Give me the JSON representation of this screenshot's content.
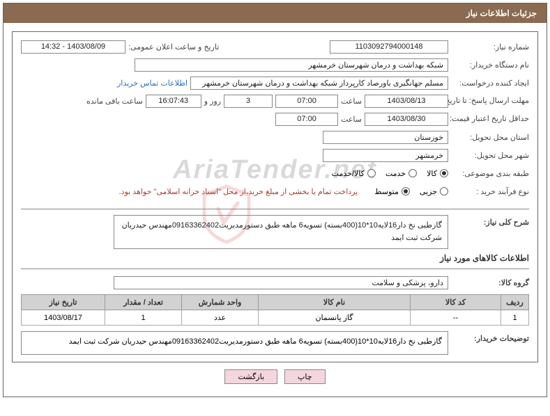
{
  "header": {
    "title": "جزئیات اطلاعات نیاز"
  },
  "watermark": "AriaTender.net",
  "fields": {
    "need_number_label": "شماره نیاز:",
    "need_number": "1103092794000148",
    "announce_datetime_label": "تاریخ و ساعت اعلان عمومی:",
    "announce_datetime": "1403/08/09 - 14:32",
    "buyer_org_label": "نام دستگاه خریدار:",
    "buyer_org": "شبکه بهداشت و درمان شهرستان خرمشهر",
    "requester_label": "ایجاد کننده درخواست:",
    "requester": "مسلم جهانگیری باورصاد کارپرداز شبکه بهداشت و درمان شهرستان خرمشهر",
    "contact_link": "اطلاعات تماس خریدار",
    "deadline_reply_label": "مهلت ارسال پاسخ: تا تاریخ:",
    "deadline_reply_date": "1403/08/13",
    "time_label": "ساعت",
    "deadline_reply_time": "07:00",
    "days_remaining": "3",
    "days_and_label": "روز و",
    "countdown": "16:07:43",
    "remaining_label": "ساعت باقی مانده",
    "price_validity_label": "حداقل تاریخ اعتبار قیمت: تا تاریخ:",
    "price_validity_date": "1403/08/30",
    "price_validity_time": "07:00",
    "delivery_province_label": "استان محل تحویل:",
    "delivery_province": "خوزستان",
    "delivery_city_label": "شهر محل تحویل:",
    "delivery_city": "خرمشهر",
    "category_label": "طبقه بندی موضوعی:",
    "category_options": [
      {
        "label": "کالا",
        "checked": true
      },
      {
        "label": "خدمت",
        "checked": false
      },
      {
        "label": "کالا/خدمت",
        "checked": false
      }
    ],
    "purchase_process_label": "نوع فرآیند خرید :",
    "purchase_options": [
      {
        "label": "جزیی",
        "checked": false
      },
      {
        "label": "متوسط",
        "checked": true
      }
    ],
    "payment_note": "پرداخت تمام یا بخشی از مبلغ خرید،از محل \"اسناد خزانه اسلامی\" خواهد بود.",
    "general_desc_label": "شرح کلی نیاز:",
    "general_desc": "گازطبی نخ دار16لایه10*10(400بسته) تسویه6 ماهه طبق دستورمدیریت09163362402مهندس حیدریان شرکت ثبت ایمد",
    "goods_info_title": "اطلاعات کالاهای مورد نیاز",
    "goods_group_label": "گروه کالا:",
    "goods_group": "دارو، پزشکی و سلامت"
  },
  "table": {
    "columns": [
      "ردیف",
      "کد کالا",
      "نام کالا",
      "واحد شمارش",
      "تعداد / مقدار",
      "تاریخ نیاز"
    ],
    "widths": [
      "40px",
      "130px",
      "auto",
      "110px",
      "110px",
      "120px"
    ],
    "rows": [
      [
        "1",
        "--",
        "گاز پانسمان",
        "عدد",
        "1",
        "1403/08/17"
      ]
    ]
  },
  "buyer_note": {
    "label": "توضیحات خریدار:",
    "text": "گازطبی نخ دار16لایه10*10(400بسته) تسویه6 ماهه طبق دستورمدیریت09163362402مهندس حیدریان شرکت ثبت ایمد"
  },
  "buttons": {
    "print": "چاپ",
    "back": "بازگشت"
  },
  "colors": {
    "header_bg": "#8a6a51",
    "border": "#666666",
    "note_text": "#a04030",
    "link": "#2b6fb5",
    "th_bg": "#d2d2d2",
    "btn_bg": "#f4d6de"
  }
}
